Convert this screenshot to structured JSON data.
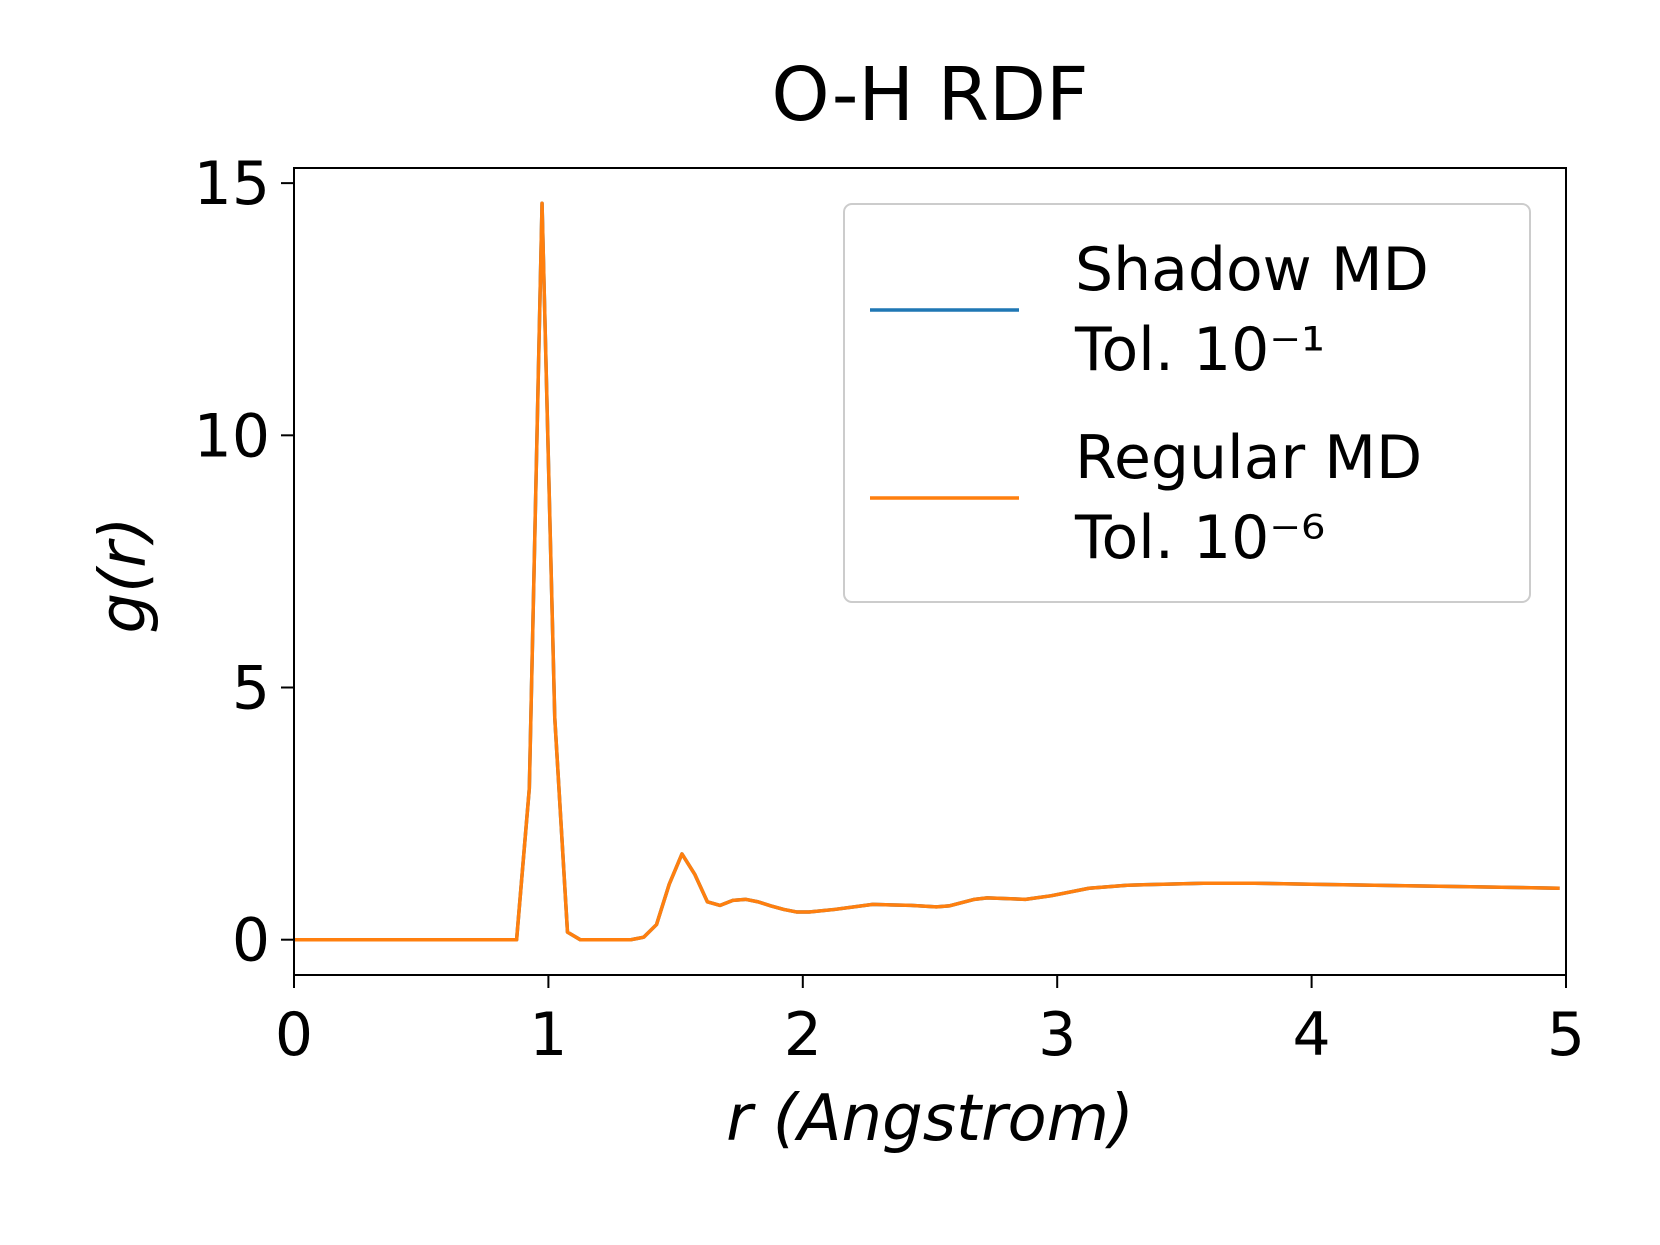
{
  "chart_data": {
    "type": "line",
    "title": "O-H RDF",
    "x_label": "r (Angstrom)",
    "y_label": "g(r)",
    "x": [
      0,
      0.125,
      0.25,
      0.375,
      0.5,
      0.625,
      0.75,
      0.875,
      0.925,
      0.975,
      1.025,
      1.075,
      1.125,
      1.175,
      1.225,
      1.275,
      1.325,
      1.375,
      1.425,
      1.475,
      1.525,
      1.575,
      1.625,
      1.675,
      1.725,
      1.775,
      1.825,
      1.875,
      1.925,
      1.975,
      2.025,
      2.125,
      2.275,
      2.425,
      2.525,
      2.575,
      2.675,
      2.725,
      2.875,
      2.975,
      3.125,
      3.275,
      3.575,
      3.775,
      4.0,
      4.5,
      4.975
    ],
    "series": [
      {
        "name": "Shadow MD Tol. 10⁻¹",
        "color": "#1f77b4",
        "values": [
          0,
          0,
          0,
          0,
          0,
          0,
          0,
          0,
          3,
          14.6,
          4.4,
          0.15,
          0,
          0,
          0,
          0,
          0,
          0.05,
          0.3,
          1.1,
          1.7,
          1.3,
          0.75,
          0.68,
          0.78,
          0.8,
          0.75,
          0.67,
          0.6,
          0.55,
          0.55,
          0.6,
          0.7,
          0.68,
          0.65,
          0.67,
          0.8,
          0.83,
          0.8,
          0.87,
          1.02,
          1.08,
          1.12,
          1.12,
          1.1,
          1.06,
          1.02
        ]
      },
      {
        "name": "Regular MD Tol. 10⁻⁶",
        "color": "#ff7f0e",
        "values": [
          0,
          0,
          0,
          0,
          0,
          0,
          0,
          0,
          3,
          14.6,
          4.4,
          0.15,
          0,
          0,
          0,
          0,
          0,
          0.05,
          0.3,
          1.1,
          1.7,
          1.3,
          0.75,
          0.68,
          0.78,
          0.8,
          0.75,
          0.67,
          0.6,
          0.55,
          0.55,
          0.6,
          0.7,
          0.68,
          0.65,
          0.67,
          0.8,
          0.83,
          0.8,
          0.87,
          1.02,
          1.08,
          1.12,
          1.12,
          1.1,
          1.06,
          1.02
        ]
      }
    ],
    "xlim": [
      0,
      5
    ],
    "xticks": [
      0,
      1,
      2,
      3,
      4,
      5
    ],
    "ylim": [
      -0.7,
      15.3
    ],
    "yticks": [
      0,
      5,
      10,
      15
    ],
    "grid": false,
    "legend": "upper right"
  }
}
